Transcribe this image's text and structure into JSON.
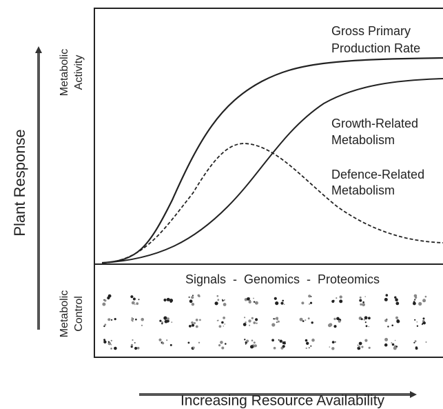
{
  "labels": {
    "y_axis": "Plant Response",
    "x_axis": "Increasing Resource Availability",
    "upper_panel": [
      "Metabolic",
      "Activity"
    ],
    "lower_panel": [
      "Metabolic",
      "Control"
    ],
    "lower_title": "Signals  -  Genomics  -  Proteomics"
  },
  "curves": [
    {
      "label": [
        "Gross Primary",
        "Production Rate"
      ]
    },
    {
      "label": [
        "Growth-Related",
        "Metabolism"
      ]
    },
    {
      "label": [
        "Defence-Related",
        "Metabolism"
      ]
    }
  ]
}
